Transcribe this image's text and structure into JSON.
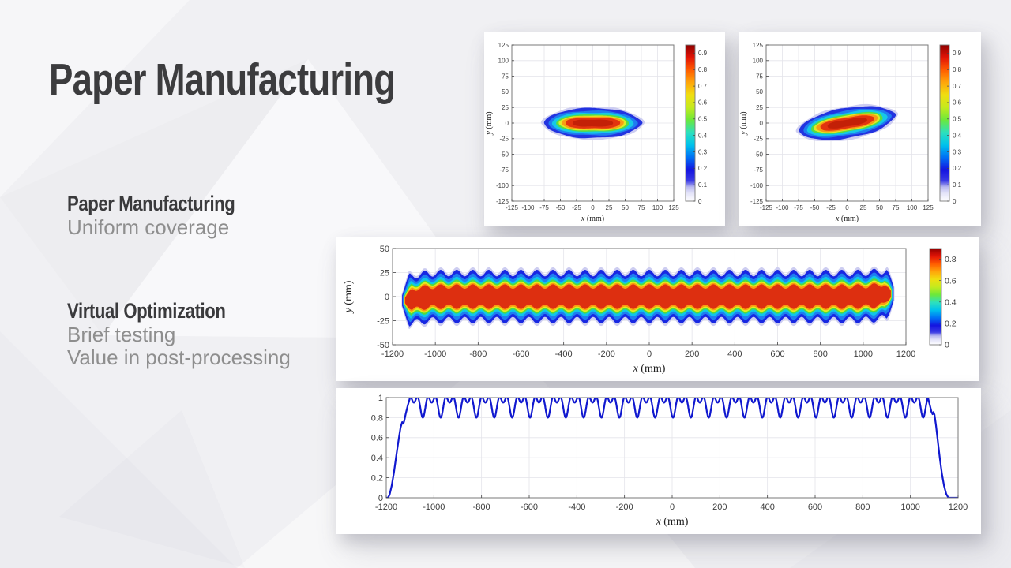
{
  "slide": {
    "title": "Paper Manufacturing",
    "sections": [
      {
        "heading": "Paper Manufacturing",
        "lines": [
          "Uniform coverage"
        ]
      },
      {
        "heading": "Virtual Optimization",
        "lines": [
          "Brief testing",
          "Value in post-processing"
        ]
      }
    ],
    "colors": {
      "title": "#3c3c3e",
      "heading": "#3a3a3c",
      "body": "#8e8e8e",
      "card_bg": "#ffffff",
      "line_blue": "#1018cf"
    }
  },
  "chart_data": [
    {
      "id": "spray-footprint-aligned",
      "type": "heatmap",
      "subtype": "spray-footprint",
      "xlabel": "x",
      "ylabel": "y",
      "unit": "(mm)",
      "xlim": [
        -125,
        125
      ],
      "ylim": [
        -125,
        125
      ],
      "xticks": [
        -125,
        -100,
        -75,
        -50,
        -25,
        0,
        25,
        50,
        75,
        100,
        125
      ],
      "yticks": [
        -125,
        -100,
        -75,
        -50,
        -25,
        0,
        25,
        50,
        75,
        100,
        125
      ],
      "grid": true,
      "rotation_deg": 0,
      "footprint": {
        "center": [
          0,
          0
        ],
        "tip_halfwidth_mm": 78,
        "core_halfheight_mm": 26,
        "peak_level": 0.9
      },
      "contours": [
        {
          "level": 0.05,
          "color": "#cdcdf1",
          "rx": 80,
          "ry": 28.0,
          "e": 1.3,
          "dimple": 0.05
        },
        {
          "level": 0.1,
          "color": "#2233e0",
          "rx": 76,
          "ry": 25.5,
          "e": 1.3,
          "dimple": 0.06
        },
        {
          "level": 0.2,
          "color": "#1e7df0",
          "rx": 69,
          "ry": 21.0,
          "e": 1.15,
          "dimple": 0.07
        },
        {
          "level": 0.3,
          "color": "#16c8e6",
          "rx": 63,
          "ry": 18.0,
          "e": 1.05,
          "dimple": 0.08
        },
        {
          "level": 0.45,
          "color": "#55dd44",
          "rx": 56,
          "ry": 15.0,
          "e": 0.95,
          "dimple": 0.1
        },
        {
          "level": 0.55,
          "color": "#e0ea25",
          "rx": 52,
          "ry": 13.2,
          "e": 0.95,
          "dimple": 0.11
        },
        {
          "level": 0.65,
          "color": "#f89e14",
          "rx": 48,
          "ry": 11.8,
          "e": 0.9,
          "dimple": 0.12
        },
        {
          "level": 0.8,
          "color": "#e2340e",
          "rx": 42,
          "ry": 9.8,
          "e": 0.85,
          "dimple": 0.16
        },
        {
          "level": 0.9,
          "color": "#c32007",
          "rx": 31,
          "ry": 6.6,
          "e": 0.8,
          "dimple": 0.2
        }
      ],
      "colorbar": {
        "lim": [
          0,
          0.95
        ],
        "ticks": [
          0,
          0.1,
          0.2,
          0.3,
          0.4,
          0.5,
          0.6,
          0.7,
          0.8,
          0.9
        ]
      }
    },
    {
      "id": "spray-footprint-rotated",
      "type": "heatmap",
      "subtype": "spray-footprint",
      "xlabel": "x",
      "ylabel": "y",
      "unit": "(mm)",
      "xlim": [
        -125,
        125
      ],
      "ylim": [
        -125,
        125
      ],
      "xticks": [
        -125,
        -100,
        -75,
        -50,
        -25,
        0,
        25,
        50,
        75,
        100,
        125
      ],
      "yticks": [
        -125,
        -100,
        -75,
        -50,
        -25,
        0,
        25,
        50,
        75,
        100,
        125
      ],
      "grid": true,
      "rotation_deg": 10,
      "footprint": {
        "center": [
          0,
          0
        ],
        "tip_halfwidth_mm": 78,
        "core_halfheight_mm": 26,
        "peak_level": 0.9
      },
      "contours": [
        {
          "level": 0.05,
          "color": "#cdcdf1",
          "rx": 80,
          "ry": 28.0,
          "e": 1.3,
          "dimple": 0.05
        },
        {
          "level": 0.1,
          "color": "#2233e0",
          "rx": 76,
          "ry": 25.5,
          "e": 1.3,
          "dimple": 0.06
        },
        {
          "level": 0.2,
          "color": "#1e7df0",
          "rx": 69,
          "ry": 21.0,
          "e": 1.15,
          "dimple": 0.07
        },
        {
          "level": 0.3,
          "color": "#16c8e6",
          "rx": 63,
          "ry": 18.0,
          "e": 1.05,
          "dimple": 0.08
        },
        {
          "level": 0.45,
          "color": "#55dd44",
          "rx": 56,
          "ry": 15.0,
          "e": 0.95,
          "dimple": 0.1
        },
        {
          "level": 0.55,
          "color": "#e0ea25",
          "rx": 52,
          "ry": 13.2,
          "e": 0.95,
          "dimple": 0.11
        },
        {
          "level": 0.65,
          "color": "#f89e14",
          "rx": 48,
          "ry": 11.8,
          "e": 0.9,
          "dimple": 0.12
        },
        {
          "level": 0.8,
          "color": "#e2340e",
          "rx": 42,
          "ry": 9.8,
          "e": 0.85,
          "dimple": 0.16
        },
        {
          "level": 0.9,
          "color": "#c32007",
          "rx": 31,
          "ry": 6.6,
          "e": 0.8,
          "dimple": 0.2
        }
      ],
      "colorbar": {
        "lim": [
          0,
          0.95
        ],
        "ticks": [
          0,
          0.1,
          0.2,
          0.3,
          0.4,
          0.5,
          0.6,
          0.7,
          0.8,
          0.9
        ]
      }
    },
    {
      "id": "overlap-band",
      "type": "heatmap",
      "subtype": "overlap-band",
      "xlabel": "x",
      "ylabel": "y",
      "unit": "(mm)",
      "xlim": [
        -1200,
        1200
      ],
      "ylim": [
        -50,
        50
      ],
      "xticks": [
        -1200,
        -1000,
        -800,
        -600,
        -400,
        -200,
        0,
        200,
        400,
        600,
        800,
        1000,
        1200
      ],
      "yticks": [
        -50,
        -25,
        0,
        25,
        50
      ],
      "grid": true,
      "x_extent": [
        -1158,
        1146
      ],
      "lobe_period_mm": 75,
      "layers": [
        {
          "level": 0.05,
          "color": "#cdcdf1",
          "h": 27.0,
          "a": 3.4
        },
        {
          "level": 0.1,
          "color": "#1828e2",
          "h": 24.5,
          "a": 3.4
        },
        {
          "level": 0.2,
          "color": "#1e7df0",
          "h": 21.0,
          "a": 3.0
        },
        {
          "level": 0.3,
          "color": "#0fc6ea",
          "h": 18.0,
          "a": 2.6
        },
        {
          "level": 0.45,
          "color": "#52db3e",
          "h": 15.5,
          "a": 2.2
        },
        {
          "level": 0.55,
          "color": "#e3ec1f",
          "h": 13.8,
          "a": 2.0
        },
        {
          "level": 0.65,
          "color": "#fb9b0f",
          "h": 12.2,
          "a": 2.0
        },
        {
          "level": 0.8,
          "color": "#dd2f10",
          "h": 10.5,
          "a": 2.3
        }
      ],
      "colorbar": {
        "lim": [
          0,
          0.9
        ],
        "ticks": [
          0,
          0.2,
          0.4,
          0.6,
          0.8
        ]
      }
    },
    {
      "id": "coverage-profile",
      "type": "line",
      "color": "#1018cf",
      "line_width": 2.2,
      "xlabel": "x",
      "unit": "(mm)",
      "xlim": [
        -1200,
        1200
      ],
      "ylim": [
        0,
        1
      ],
      "xticks": [
        -1200,
        -1000,
        -800,
        -600,
        -400,
        -200,
        0,
        200,
        400,
        600,
        800,
        1000,
        1200
      ],
      "yticks": [
        0,
        0.2,
        0.4,
        0.6,
        0.8,
        1
      ],
      "grid": true,
      "profile": {
        "period_mm": 75,
        "plateau_x": [
          -1102,
          1075
        ],
        "peak": 1.0,
        "mid_dip": 0.95,
        "valley": 0.8,
        "phase_offset": 0.26,
        "left_edge": [
          [
            -1200,
            0
          ],
          [
            -1193,
            0
          ],
          [
            -1186,
            0.03
          ],
          [
            -1177,
            0.12
          ],
          [
            -1168,
            0.25
          ],
          [
            -1158,
            0.42
          ],
          [
            -1148,
            0.58
          ],
          [
            -1140,
            0.7
          ],
          [
            -1133,
            0.755
          ],
          [
            -1128,
            0.74
          ],
          [
            -1124,
            0.77
          ],
          [
            -1118,
            0.84
          ],
          [
            -1110,
            0.92
          ],
          [
            -1102,
            0.985
          ]
        ],
        "right_edge": [
          [
            1075,
            0.985
          ],
          [
            1082,
            0.92
          ],
          [
            1088,
            0.86
          ],
          [
            1093,
            0.835
          ],
          [
            1097,
            0.855
          ],
          [
            1101,
            0.83
          ],
          [
            1107,
            0.73
          ],
          [
            1114,
            0.58
          ],
          [
            1123,
            0.4
          ],
          [
            1132,
            0.24
          ],
          [
            1141,
            0.12
          ],
          [
            1150,
            0.04
          ],
          [
            1158,
            0.005
          ],
          [
            1165,
            0
          ],
          [
            1200,
            0
          ]
        ]
      }
    }
  ]
}
